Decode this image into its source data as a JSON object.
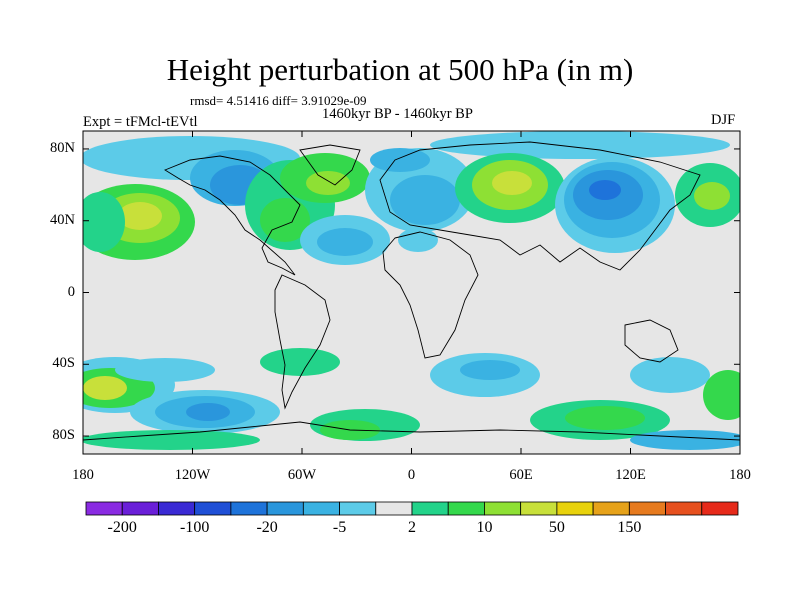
{
  "title": "Height perturbation at 500 hPa (in m)",
  "stats": "rmsd= 4.51416 diff= 3.91029e-09",
  "period": "1460kyr BP - 1460kyr BP",
  "experiment": "Expt = tFMcl-tEVtl",
  "season": "DJF",
  "map": {
    "lat_ticks": [
      {
        "value": 80,
        "label": "80N"
      },
      {
        "value": 40,
        "label": "40N"
      },
      {
        "value": 0,
        "label": "0"
      },
      {
        "value": -40,
        "label": "40S"
      },
      {
        "value": -80,
        "label": "80S"
      }
    ],
    "lon_ticks": [
      {
        "value": -180,
        "label": "180"
      },
      {
        "value": -120,
        "label": "120W"
      },
      {
        "value": -60,
        "label": "60W"
      },
      {
        "value": 0,
        "label": "0"
      },
      {
        "value": 60,
        "label": "60E"
      },
      {
        "value": 120,
        "label": "120E"
      },
      {
        "value": 180,
        "label": "180"
      }
    ],
    "lat_range": [
      -90,
      90
    ],
    "lon_range": [
      -180,
      180
    ]
  },
  "colorbar": {
    "colors": [
      "#8a2be2",
      "#6a1fd8",
      "#3a2ad4",
      "#1f4fd6",
      "#1e73da",
      "#2a96dc",
      "#3ab2e2",
      "#5ccbe8",
      "#e6e6e6",
      "#23d38a",
      "#34d84c",
      "#8ee034",
      "#c8e03a",
      "#e8d20c",
      "#e6a21a",
      "#e67a1e",
      "#e6501e",
      "#e62a1a"
    ],
    "labels": [
      {
        "boundary": 1,
        "text": "-200"
      },
      {
        "boundary": 3,
        "text": "-100"
      },
      {
        "boundary": 5,
        "text": "-20"
      },
      {
        "boundary": 7,
        "text": "-5"
      },
      {
        "boundary": 9,
        "text": "2"
      },
      {
        "boundary": 11,
        "text": "10"
      },
      {
        "boundary": 13,
        "text": "50"
      },
      {
        "boundary": 15,
        "text": "150"
      }
    ]
  }
}
